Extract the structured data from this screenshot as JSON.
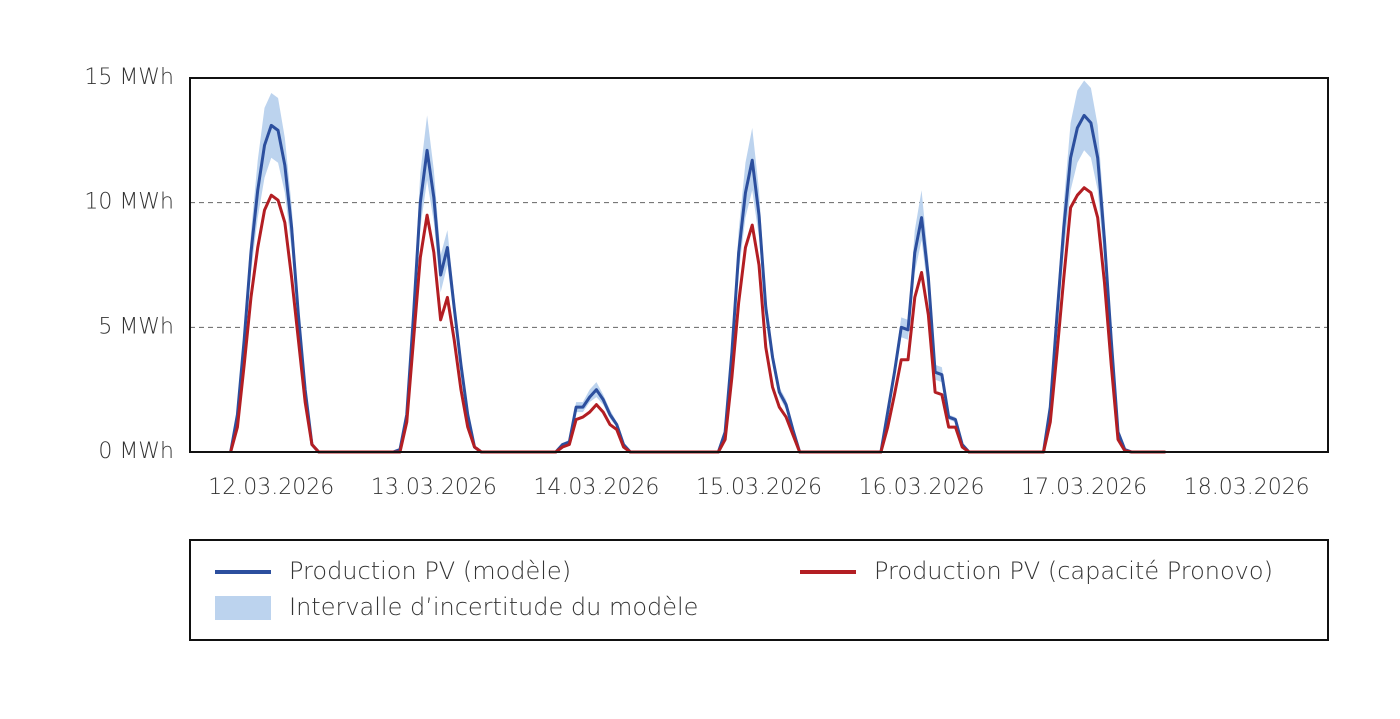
{
  "chart_data": {
    "type": "line",
    "x": [
      6,
      7,
      8,
      9,
      10,
      11,
      12,
      13,
      14,
      15,
      16,
      17,
      18,
      19,
      30,
      31,
      32,
      33,
      34,
      35,
      36,
      37,
      38,
      39,
      40,
      41,
      42,
      43,
      54,
      55,
      56,
      57,
      58,
      59,
      60,
      61,
      62,
      63,
      64,
      65,
      78,
      79,
      80,
      81,
      82,
      83,
      84,
      85,
      86,
      87,
      88,
      89,
      90,
      102,
      103,
      104,
      105,
      106,
      107,
      108,
      109,
      110,
      111,
      112,
      113,
      114,
      115,
      126,
      127,
      128,
      129,
      130,
      131,
      132,
      133,
      134,
      135,
      136,
      137,
      138,
      139,
      144
    ],
    "xlim": [
      0,
      168
    ],
    "xticks": [
      {
        "value": 12,
        "label": "12.03.2026"
      },
      {
        "value": 36,
        "label": "13.03.2026"
      },
      {
        "value": 60,
        "label": "14.03.2026"
      },
      {
        "value": 84,
        "label": "15.03.2026"
      },
      {
        "value": 108,
        "label": "16.03.2026"
      },
      {
        "value": 132,
        "label": "17.03.2026"
      },
      {
        "value": 156,
        "label": "18.03.2026"
      }
    ],
    "ylim": [
      0,
      15
    ],
    "yticks": [
      {
        "value": 0,
        "label": "0 MWh"
      },
      {
        "value": 5,
        "label": "5 MWh"
      },
      {
        "value": 10,
        "label": "10 MWh"
      },
      {
        "value": 15,
        "label": "15 MWh"
      }
    ],
    "grid": true,
    "series": [
      {
        "name": "Production PV (modèle)",
        "color": "#2c4f9e",
        "values": [
          0,
          1.5,
          4.5,
          8,
          10.5,
          12.3,
          13.1,
          12.9,
          11.5,
          9,
          5.5,
          2.5,
          0.3,
          0,
          0,
          0.1,
          1.5,
          5.5,
          10,
          12.1,
          10.2,
          7.1,
          8.2,
          5.8,
          3.5,
          1.5,
          0.2,
          0,
          0,
          0.3,
          0.4,
          1.8,
          1.8,
          2.2,
          2.5,
          2.1,
          1.5,
          1.1,
          0.3,
          0,
          0,
          0.8,
          4,
          8,
          10.4,
          11.7,
          9.5,
          5.8,
          3.8,
          2.4,
          1.9,
          0.9,
          0,
          0,
          1.6,
          3.2,
          5,
          4.9,
          8,
          9.4,
          7,
          3.2,
          3.1,
          1.4,
          1.3,
          0.3,
          0,
          0,
          1.8,
          5.5,
          9,
          11.8,
          13,
          13.5,
          13.2,
          11.8,
          8.5,
          4.5,
          0.8,
          0.1,
          0,
          0
        ]
      },
      {
        "name": "Intervalle d’incertitude du modèle",
        "color": "#bcd3ee",
        "upper": [
          0,
          1.7,
          5,
          8.8,
          11.7,
          13.8,
          14.4,
          14.2,
          12.6,
          9.9,
          6,
          2.8,
          0.35,
          0,
          0,
          0.12,
          1.7,
          6.1,
          11.2,
          13.5,
          11.3,
          7.9,
          8.9,
          6.3,
          3.8,
          1.7,
          0.25,
          0,
          0,
          0.35,
          0.5,
          2,
          2,
          2.5,
          2.8,
          2.3,
          1.7,
          1.2,
          0.35,
          0,
          0,
          0.9,
          4.4,
          8.9,
          11.6,
          13,
          10.5,
          6.3,
          4.1,
          2.6,
          2.1,
          1,
          0,
          0,
          1.8,
          3.5,
          5.4,
          5.3,
          8.9,
          10.5,
          7.7,
          3.5,
          3.4,
          1.5,
          1.4,
          0.35,
          0,
          0,
          2,
          6.1,
          10,
          13.2,
          14.5,
          14.9,
          14.6,
          13.1,
          9.4,
          5,
          0.9,
          0.12,
          0,
          0
        ],
        "lower": [
          0,
          1.3,
          4,
          7.2,
          9.4,
          11,
          11.8,
          11.6,
          10.4,
          8.1,
          5,
          2.2,
          0.25,
          0,
          0,
          0.08,
          1.3,
          4.9,
          9,
          10.9,
          9.2,
          6.4,
          7.5,
          5.3,
          3.2,
          1.3,
          0.15,
          0,
          0,
          0.25,
          0.35,
          1.6,
          1.6,
          2,
          2.2,
          1.9,
          1.35,
          1,
          0.25,
          0,
          0,
          0.7,
          3.6,
          7.2,
          9.4,
          10.5,
          8.6,
          5.3,
          3.5,
          2.2,
          1.7,
          0.8,
          0,
          0,
          1.4,
          2.9,
          4.6,
          4.5,
          7.2,
          8.5,
          6.3,
          2.9,
          2.8,
          1.3,
          1.2,
          0.25,
          0,
          0,
          1.6,
          4.9,
          8,
          10.5,
          11.6,
          12.1,
          11.8,
          10.5,
          7.6,
          4,
          0.7,
          0.08,
          0,
          0
        ]
      },
      {
        "name": "Production PV (capacité Pronovo)",
        "color": "#b31e23",
        "values": [
          0,
          1,
          3.5,
          6.2,
          8.2,
          9.7,
          10.3,
          10.1,
          9.2,
          7,
          4.5,
          2,
          0.3,
          0,
          0,
          0,
          1.2,
          4.5,
          7.8,
          9.5,
          8,
          5.3,
          6.2,
          4.5,
          2.5,
          1,
          0.2,
          0,
          0,
          0.2,
          0.3,
          1.3,
          1.4,
          1.6,
          1.9,
          1.6,
          1.1,
          0.9,
          0.2,
          0,
          0,
          0.5,
          3,
          6,
          8.2,
          9.1,
          7.5,
          4.2,
          2.6,
          1.8,
          1.4,
          0.7,
          0,
          0,
          1,
          2.3,
          3.7,
          3.7,
          6.2,
          7.2,
          5.5,
          2.4,
          2.3,
          1,
          1,
          0.2,
          0,
          0,
          1.2,
          4,
          7,
          9.8,
          10.3,
          10.6,
          10.4,
          9.4,
          6.8,
          3.5,
          0.5,
          0.05,
          0,
          0
        ]
      }
    ]
  }
}
